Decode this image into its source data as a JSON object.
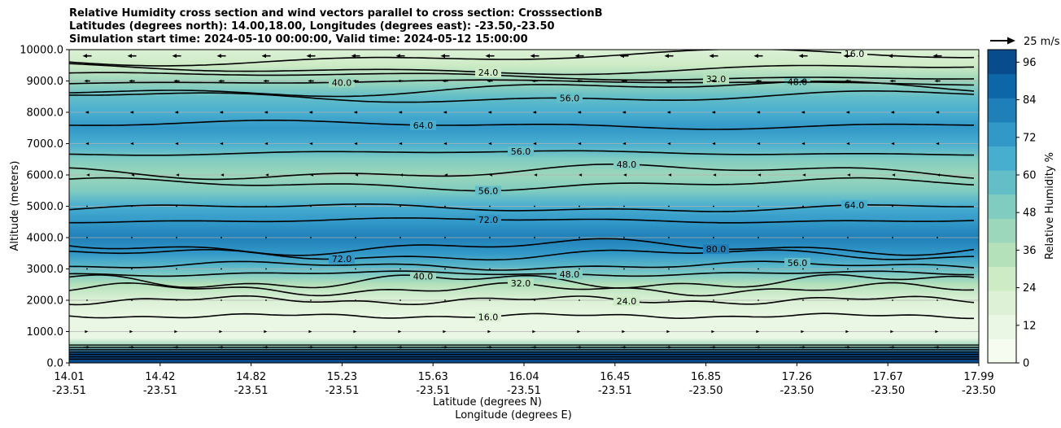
{
  "chart_data": {
    "type": "heatmap",
    "title_lines": [
      "Relative Humidity cross section and wind vectors parallel to cross section: CrosssectionB",
      "Latitudes (degrees north): 14.00,18.00, Longitudes (degrees east): -23.50,-23.50",
      "Simulation start time: 2024-05-10 00:00:00, Valid time: 2024-05-12 15:00:00"
    ],
    "ylabel": "Altitude (meters)",
    "xlabel_lines": [
      "Latitude (degrees N)",
      "Longitude (degrees E)"
    ],
    "ylim": [
      0,
      10000
    ],
    "y_ticks": [
      0,
      1000,
      2000,
      3000,
      4000,
      5000,
      6000,
      7000,
      8000,
      9000,
      10000
    ],
    "y_tick_labels": [
      "0.0",
      "1000.0",
      "2000.0",
      "3000.0",
      "4000.0",
      "5000.0",
      "6000.0",
      "7000.0",
      "8000.0",
      "9000.0",
      "10000.0"
    ],
    "x_ticks": [
      {
        "lat": "14.01",
        "lon": "-23.51"
      },
      {
        "lat": "14.42",
        "lon": "-23.51"
      },
      {
        "lat": "14.82",
        "lon": "-23.51"
      },
      {
        "lat": "15.23",
        "lon": "-23.51"
      },
      {
        "lat": "15.63",
        "lon": "-23.51"
      },
      {
        "lat": "16.04",
        "lon": "-23.51"
      },
      {
        "lat": "16.45",
        "lon": "-23.51"
      },
      {
        "lat": "16.85",
        "lon": "-23.50"
      },
      {
        "lat": "17.26",
        "lon": "-23.50"
      },
      {
        "lat": "17.67",
        "lon": "-23.50"
      },
      {
        "lat": "17.99",
        "lon": "-23.50"
      }
    ],
    "colorbar": {
      "label": "Relative Humidity %",
      "min": 0,
      "max": 100,
      "ticks": [
        0,
        12,
        24,
        36,
        48,
        60,
        72,
        84,
        96
      ],
      "colors": [
        "#f7fcf0",
        "#eaf7e4",
        "#dcf1d6",
        "#cdebc5",
        "#b5e1ba",
        "#9cd6bb",
        "#80ccc0",
        "#63bec8",
        "#48aed0",
        "#3298c8",
        "#1f7fb8",
        "#0d66a8",
        "#084c8e"
      ]
    },
    "quiver_key": {
      "label": "25 m/s",
      "value": 25
    },
    "humidity_profile": [
      {
        "alt": 0,
        "rh": 96
      },
      {
        "alt": 300,
        "rh": 96
      },
      {
        "alt": 550,
        "rh": 40
      },
      {
        "alt": 800,
        "rh": 10
      },
      {
        "alt": 1400,
        "rh": 14
      },
      {
        "alt": 2000,
        "rh": 22
      },
      {
        "alt": 2500,
        "rh": 32
      },
      {
        "alt": 3000,
        "rh": 54
      },
      {
        "alt": 3500,
        "rh": 72
      },
      {
        "alt": 4000,
        "rh": 82
      },
      {
        "alt": 4500,
        "rh": 76
      },
      {
        "alt": 5000,
        "rh": 64
      },
      {
        "alt": 5500,
        "rh": 52
      },
      {
        "alt": 6000,
        "rh": 40
      },
      {
        "alt": 6500,
        "rh": 48
      },
      {
        "alt": 7000,
        "rh": 62
      },
      {
        "alt": 7500,
        "rh": 70
      },
      {
        "alt": 8000,
        "rh": 68
      },
      {
        "alt": 8500,
        "rh": 60
      },
      {
        "alt": 9000,
        "rh": 44
      },
      {
        "alt": 9500,
        "rh": 30
      },
      {
        "alt": 10000,
        "rh": 22
      }
    ],
    "contours": [
      {
        "level": "16.0",
        "alt": 1500
      },
      {
        "level": "24.0",
        "alt": 2000
      },
      {
        "level": "32.0",
        "alt": 2350
      },
      {
        "level": "40.0",
        "alt": 2600
      },
      {
        "level": "48.0",
        "alt": 2850
      },
      {
        "level": "56.0",
        "alt": 3100
      },
      {
        "level": "72.0",
        "alt": 3450
      },
      {
        "level": "80.0",
        "alt": 3700
      },
      {
        "level": "72.0",
        "alt": 4550
      },
      {
        "level": "64.0",
        "alt": 4950
      },
      {
        "level": "56.0",
        "alt": 5700
      },
      {
        "level": "48.0",
        "alt": 6100
      },
      {
        "level": "56.0",
        "alt": 6700
      },
      {
        "level": "64.0",
        "alt": 7600
      },
      {
        "level": "56.0",
        "alt": 8500
      },
      {
        "level": "48.0",
        "alt": 8750
      },
      {
        "level": "40.0",
        "alt": 8950
      },
      {
        "level": "32.0",
        "alt": 9150
      },
      {
        "level": "24.0",
        "alt": 9400
      },
      {
        "level": "16.0",
        "alt": 9750
      }
    ],
    "wind_layers": [
      {
        "alt": 9800,
        "u": -12
      },
      {
        "alt": 9000,
        "u": -8
      },
      {
        "alt": 8000,
        "u": -5
      },
      {
        "alt": 7000,
        "u": -4
      },
      {
        "alt": 6000,
        "u": -2
      },
      {
        "alt": 5000,
        "u": -1
      },
      {
        "alt": 4000,
        "u": -1
      },
      {
        "alt": 3000,
        "u": 0.5
      },
      {
        "alt": 2000,
        "u": 1
      },
      {
        "alt": 1000,
        "u": 3
      },
      {
        "alt": 500,
        "u": 8
      }
    ]
  }
}
